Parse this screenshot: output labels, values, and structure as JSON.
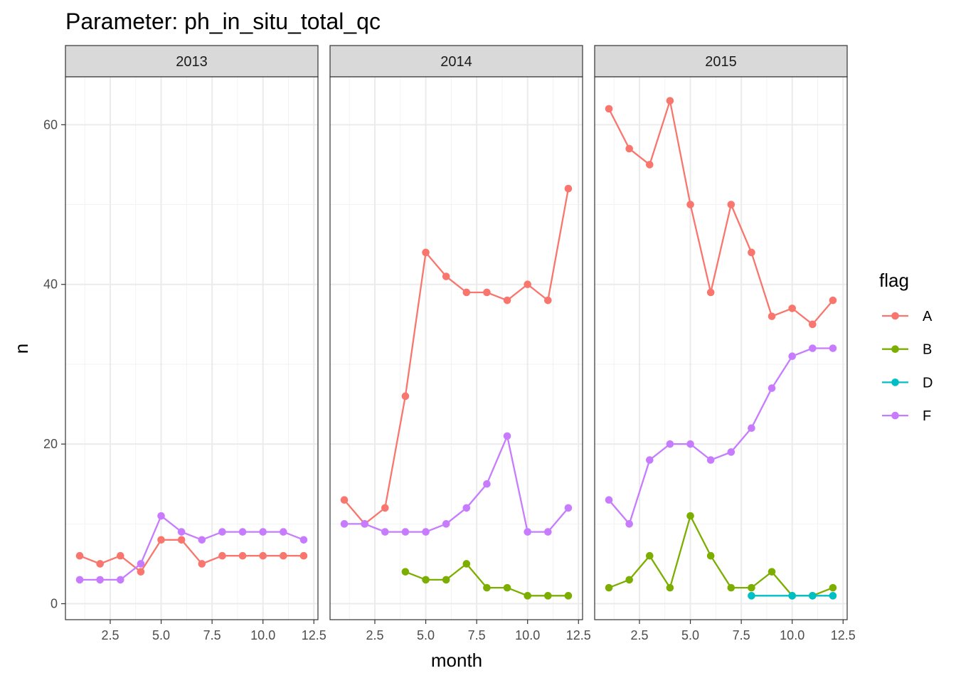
{
  "chart_data": {
    "type": "line",
    "title": "Parameter:  ph_in_situ_total_qc",
    "xlabel": "month",
    "ylabel": "n",
    "xlim": [
      0.3,
      12.7
    ],
    "ylim": [
      -2,
      66
    ],
    "x_ticks": [
      2.5,
      5.0,
      7.5,
      10.0,
      12.5
    ],
    "x_tick_labels": [
      "2.5",
      "5.0",
      "7.5",
      "10.0",
      "12.5"
    ],
    "y_ticks": [
      0,
      20,
      40,
      60
    ],
    "y_tick_labels": [
      "0",
      "20",
      "40",
      "60"
    ],
    "grid": true,
    "legend": {
      "title": "flag",
      "placement": "right",
      "entries": [
        {
          "label": "A",
          "color": "#F8766D"
        },
        {
          "label": "B",
          "color": "#7CAE00"
        },
        {
          "label": "D",
          "color": "#00BFC4"
        },
        {
          "label": "F",
          "color": "#C77CFF"
        }
      ]
    },
    "panels": [
      {
        "label": "2013",
        "series": [
          {
            "flag": "A",
            "x": [
              1,
              2,
              3,
              4,
              5,
              6,
              7,
              8,
              9,
              10,
              11,
              12
            ],
            "y": [
              6,
              5,
              6,
              4,
              8,
              8,
              5,
              6,
              6,
              6,
              6,
              6
            ]
          },
          {
            "flag": "F",
            "x": [
              1,
              2,
              3,
              4,
              5,
              6,
              7,
              8,
              9,
              10,
              11,
              12
            ],
            "y": [
              3,
              3,
              3,
              5,
              11,
              9,
              8,
              9,
              9,
              9,
              9,
              8
            ]
          }
        ]
      },
      {
        "label": "2014",
        "series": [
          {
            "flag": "A",
            "x": [
              1,
              2,
              3,
              4,
              5,
              6,
              7,
              8,
              9,
              10,
              11,
              12
            ],
            "y": [
              13,
              10,
              12,
              26,
              44,
              41,
              39,
              39,
              38,
              40,
              38,
              52
            ]
          },
          {
            "flag": "B",
            "x": [
              4,
              5,
              6,
              7,
              8,
              9,
              10,
              11,
              12
            ],
            "y": [
              4,
              3,
              3,
              5,
              2,
              2,
              1,
              1,
              1
            ]
          },
          {
            "flag": "F",
            "x": [
              1,
              2,
              3,
              4,
              5,
              6,
              7,
              8,
              9,
              10,
              11,
              12
            ],
            "y": [
              10,
              10,
              9,
              9,
              9,
              10,
              12,
              15,
              21,
              9,
              9,
              12
            ]
          }
        ]
      },
      {
        "label": "2015",
        "series": [
          {
            "flag": "A",
            "x": [
              1,
              2,
              3,
              4,
              5,
              6,
              7,
              8,
              9,
              10,
              11,
              12
            ],
            "y": [
              62,
              57,
              55,
              63,
              50,
              39,
              50,
              44,
              36,
              37,
              35,
              38
            ]
          },
          {
            "flag": "B",
            "x": [
              1,
              2,
              3,
              4,
              5,
              6,
              7,
              8,
              9,
              10,
              11,
              12
            ],
            "y": [
              2,
              3,
              6,
              2,
              11,
              6,
              2,
              2,
              4,
              1,
              1,
              2
            ]
          },
          {
            "flag": "D",
            "x": [
              8,
              10,
              11,
              12
            ],
            "y": [
              1,
              1,
              1,
              1
            ]
          },
          {
            "flag": "F",
            "x": [
              1,
              2,
              3,
              4,
              5,
              6,
              7,
              8,
              9,
              10,
              11,
              12
            ],
            "y": [
              13,
              10,
              18,
              20,
              20,
              18,
              19,
              22,
              27,
              31,
              32,
              32
            ]
          }
        ]
      }
    ]
  }
}
